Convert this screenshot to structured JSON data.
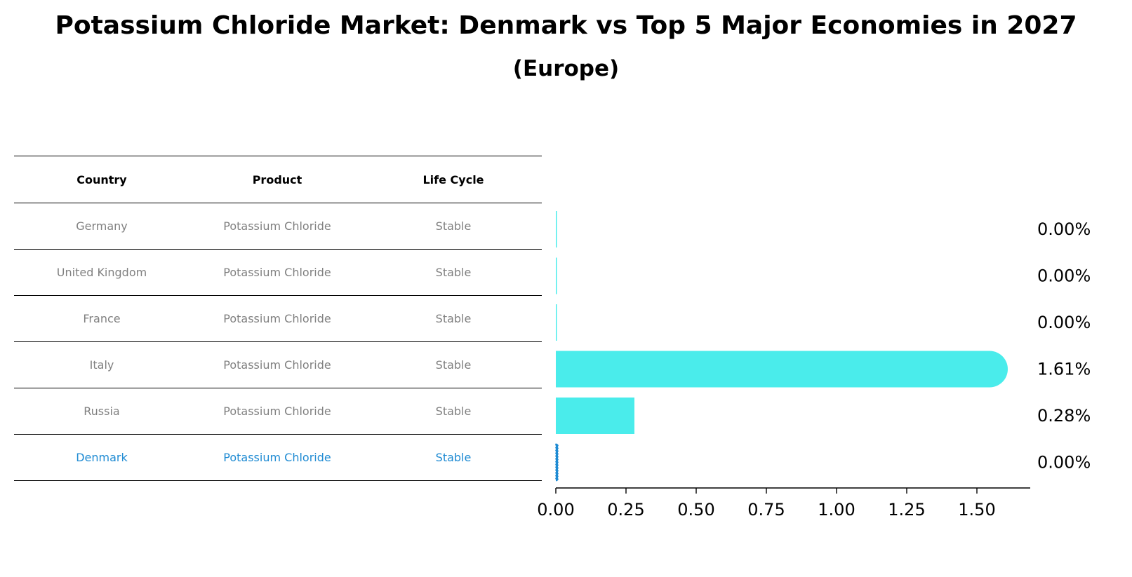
{
  "header": {
    "title": "Potassium Chloride Market: Denmark vs Top 5 Major Economies in 2027",
    "subtitle": "(Europe)"
  },
  "table": {
    "columns": [
      "Country",
      "Product",
      "Life Cycle"
    ],
    "rows": [
      [
        "Germany",
        "Potassium Chloride",
        "Stable"
      ],
      [
        "United Kingdom",
        "Potassium Chloride",
        "Stable"
      ],
      [
        "France",
        "Potassium Chloride",
        "Stable"
      ],
      [
        "Italy",
        "Potassium Chloride",
        "Stable"
      ],
      [
        "Russia",
        "Potassium Chloride",
        "Stable"
      ],
      [
        "Denmark",
        "Potassium Chloride",
        "Stable"
      ]
    ],
    "highlight_row": "Denmark",
    "highlight_color": "#1f8bd3"
  },
  "chart_data": {
    "type": "bar",
    "orientation": "horizontal",
    "categories": [
      "Germany",
      "United Kingdom",
      "France",
      "Italy",
      "Russia",
      "Denmark"
    ],
    "values": [
      0.0,
      0.0,
      0.0,
      1.61,
      0.28,
      0.0
    ],
    "value_labels": [
      "0.00%",
      "0.00%",
      "0.00%",
      "1.61%",
      "0.28%",
      "0.00%"
    ],
    "xlim": [
      0,
      1.69
    ],
    "xticks": [
      0.0,
      0.25,
      0.5,
      0.75,
      1.0,
      1.25,
      1.5
    ],
    "xtick_labels": [
      "0.00",
      "0.25",
      "0.50",
      "0.75",
      "1.00",
      "1.25",
      "1.50"
    ],
    "bar_color": "#4aeceb",
    "highlight_color": "#1f8bd3",
    "grid": false
  }
}
